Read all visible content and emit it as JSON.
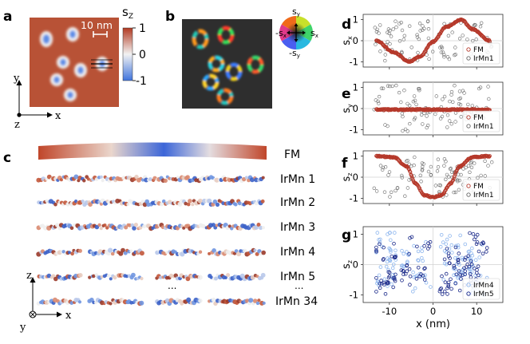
{
  "panels": {
    "a": "a",
    "b": "b",
    "c": "c",
    "d": "d",
    "e": "e",
    "f": "f",
    "g": "g"
  },
  "panel_a": {
    "scale_bar": "10 nm",
    "colorbar_label": "s",
    "colorbar_sub": "Z",
    "colorbar_ticks": [
      "1",
      "0",
      "-1"
    ],
    "axes": {
      "y": "y",
      "z": "z",
      "x": "x"
    }
  },
  "panel_b": {
    "wheel_top": "s",
    "wheel_top_sub": "y",
    "wheel_bottom": "-s",
    "wheel_bottom_sub": "y",
    "wheel_left": "-s",
    "wheel_left_sub": "x",
    "wheel_right": "s",
    "wheel_right_sub": "x"
  },
  "panel_c": {
    "layers": [
      "FM",
      "IrMn 1",
      "IrMn 2",
      "IrMn 3",
      "IrMn 4",
      "IrMn 5",
      "IrMn 34"
    ],
    "ellipsis_mid": "...",
    "ellipsis_right": "...",
    "axes": {
      "z": "z",
      "y": "y",
      "x": "x"
    }
  },
  "colors": {
    "fm": "#b5382a",
    "irmn1": "#666666",
    "irmn4": "#8fb7ee",
    "irmn5": "#1b2a8a",
    "up": "#b54a2c",
    "down": "#4c7ee0"
  },
  "chart_data": [
    {
      "panel": "d",
      "type": "scatter",
      "ylabel": "s",
      "ylabel_sub": "x",
      "xlim": [
        -16,
        16
      ],
      "ylim": [
        -1.25,
        1.25
      ],
      "yticks": [
        "1",
        "0",
        "-1"
      ],
      "series": [
        {
          "name": "FM",
          "color": "#b5382a"
        },
        {
          "name": "IrMn1",
          "color": "#666666"
        }
      ],
      "fm_curve": {
        "x": [
          -13,
          -9,
          -5.5,
          -3,
          0,
          3,
          6.5,
          9,
          13
        ],
        "y": [
          0,
          -0.55,
          -1,
          -0.75,
          -0.05,
          0.65,
          1,
          0.55,
          0
        ]
      }
    },
    {
      "panel": "e",
      "type": "scatter",
      "ylabel": "s",
      "ylabel_sub": "y",
      "xlim": [
        -16,
        16
      ],
      "ylim": [
        -1.25,
        1.25
      ],
      "yticks": [
        "1",
        "0",
        "-1"
      ],
      "series": [
        {
          "name": "FM",
          "color": "#b5382a"
        },
        {
          "name": "IrMn1",
          "color": "#666666"
        }
      ],
      "fm_curve": {
        "x": [
          -13,
          13
        ],
        "y": [
          -0.05,
          -0.05
        ]
      }
    },
    {
      "panel": "f",
      "type": "scatter",
      "ylabel": "s",
      "ylabel_sub": "z",
      "xlim": [
        -16,
        16
      ],
      "ylim": [
        -1.25,
        1.25
      ],
      "yticks": [
        "1",
        "0",
        "-1"
      ],
      "series": [
        {
          "name": "FM",
          "color": "#b5382a"
        },
        {
          "name": "IrMn1",
          "color": "#666666"
        }
      ],
      "fm_curve": {
        "x": [
          -13,
          -9,
          -6,
          -4,
          -2,
          0,
          2,
          4,
          6,
          9,
          13
        ],
        "y": [
          1,
          0.95,
          0.5,
          -0.3,
          -0.85,
          -0.95,
          -0.85,
          -0.3,
          0.5,
          0.95,
          1
        ]
      }
    },
    {
      "panel": "g",
      "type": "scatter",
      "ylabel": "s",
      "ylabel_sub": "z",
      "xlim": [
        -16,
        16
      ],
      "ylim": [
        -1.25,
        1.25
      ],
      "yticks": [
        "1",
        "0",
        "-1"
      ],
      "xticks": [
        "-10",
        "0",
        "10"
      ],
      "xlabel": "x (nm)",
      "series": [
        {
          "name": "IrMn4",
          "color": "#8fb7ee"
        },
        {
          "name": "IrMn5",
          "color": "#1b2a8a"
        }
      ]
    }
  ]
}
